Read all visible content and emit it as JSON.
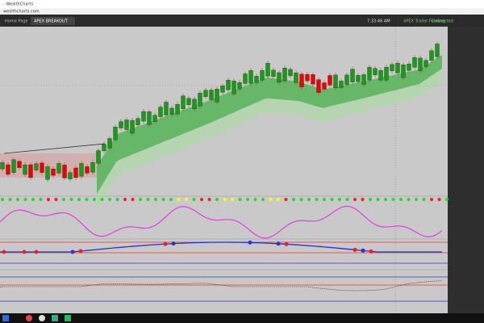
{
  "window": {
    "title": "- WealthCharts",
    "url": "wealthcharts.com"
  },
  "tabs": [
    "Home Page",
    "APEX BREAKOUT"
  ],
  "status": {
    "time": "7:33:46 AM",
    "broker": "APEX Trader Funding",
    "connection": "Connected"
  }
}
